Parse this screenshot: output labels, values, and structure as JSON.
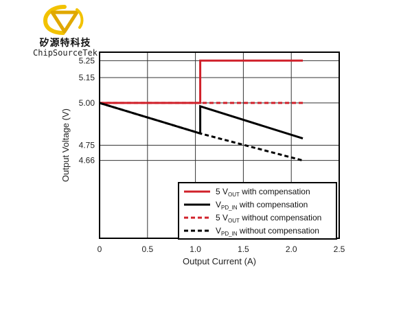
{
  "logo": {
    "company_cn": "矽源特科技",
    "company_en": "ChipSourceTek",
    "brand_color": "#f2c200",
    "brand_color_dark": "#e0a800",
    "text_color": "#111111"
  },
  "chart_data": {
    "type": "line",
    "xlabel": "Output Current (A)",
    "ylabel": "Output Voltage (V)",
    "xlim": [
      0,
      2.5
    ],
    "ylim": [
      4.2,
      5.3
    ],
    "x_ticks": [
      0,
      0.5,
      1.0,
      1.5,
      2.0,
      2.5
    ],
    "x_tick_labels": [
      "0",
      "0.5",
      "1.0",
      "1.5",
      "2.0",
      "2.5"
    ],
    "y_ticks": [
      4.66,
      4.75,
      5.0,
      5.15,
      5.25
    ],
    "y_tick_labels": [
      "4.66",
      "4.75",
      "5.00",
      "5.15",
      "5.25"
    ],
    "grid": true,
    "legend_position": "bottom-right",
    "series": [
      {
        "name": "5 V_OUT with compensation",
        "color": "#d0202a",
        "dash": false,
        "points": [
          [
            0,
            5.0
          ],
          [
            1.05,
            5.0
          ],
          [
            1.05,
            5.25
          ],
          [
            2.12,
            5.25
          ]
        ]
      },
      {
        "name": "V_PD_IN with compensation",
        "color": "#000000",
        "dash": false,
        "points": [
          [
            0,
            5.0
          ],
          [
            1.05,
            4.82
          ],
          [
            1.05,
            4.98
          ],
          [
            2.12,
            4.79
          ]
        ]
      },
      {
        "name": "5 V_OUT without compensation",
        "color": "#d0202a",
        "dash": true,
        "points": [
          [
            0,
            5.0
          ],
          [
            2.12,
            5.0
          ]
        ]
      },
      {
        "name": "V_PD_IN without compensation",
        "color": "#000000",
        "dash": true,
        "points": [
          [
            0,
            5.0
          ],
          [
            1.05,
            4.82
          ],
          [
            2.12,
            4.66
          ]
        ]
      }
    ],
    "legend": [
      {
        "prefix": "5 V",
        "sub": "OUT",
        "suffix": " with compensation"
      },
      {
        "prefix": "V",
        "sub": "PD_IN",
        "suffix": " with compensation"
      },
      {
        "prefix": "5 V",
        "sub": "OUT",
        "suffix": " without compensation"
      },
      {
        "prefix": "V",
        "sub": "PD_IN",
        "suffix": " without compensation"
      }
    ]
  }
}
